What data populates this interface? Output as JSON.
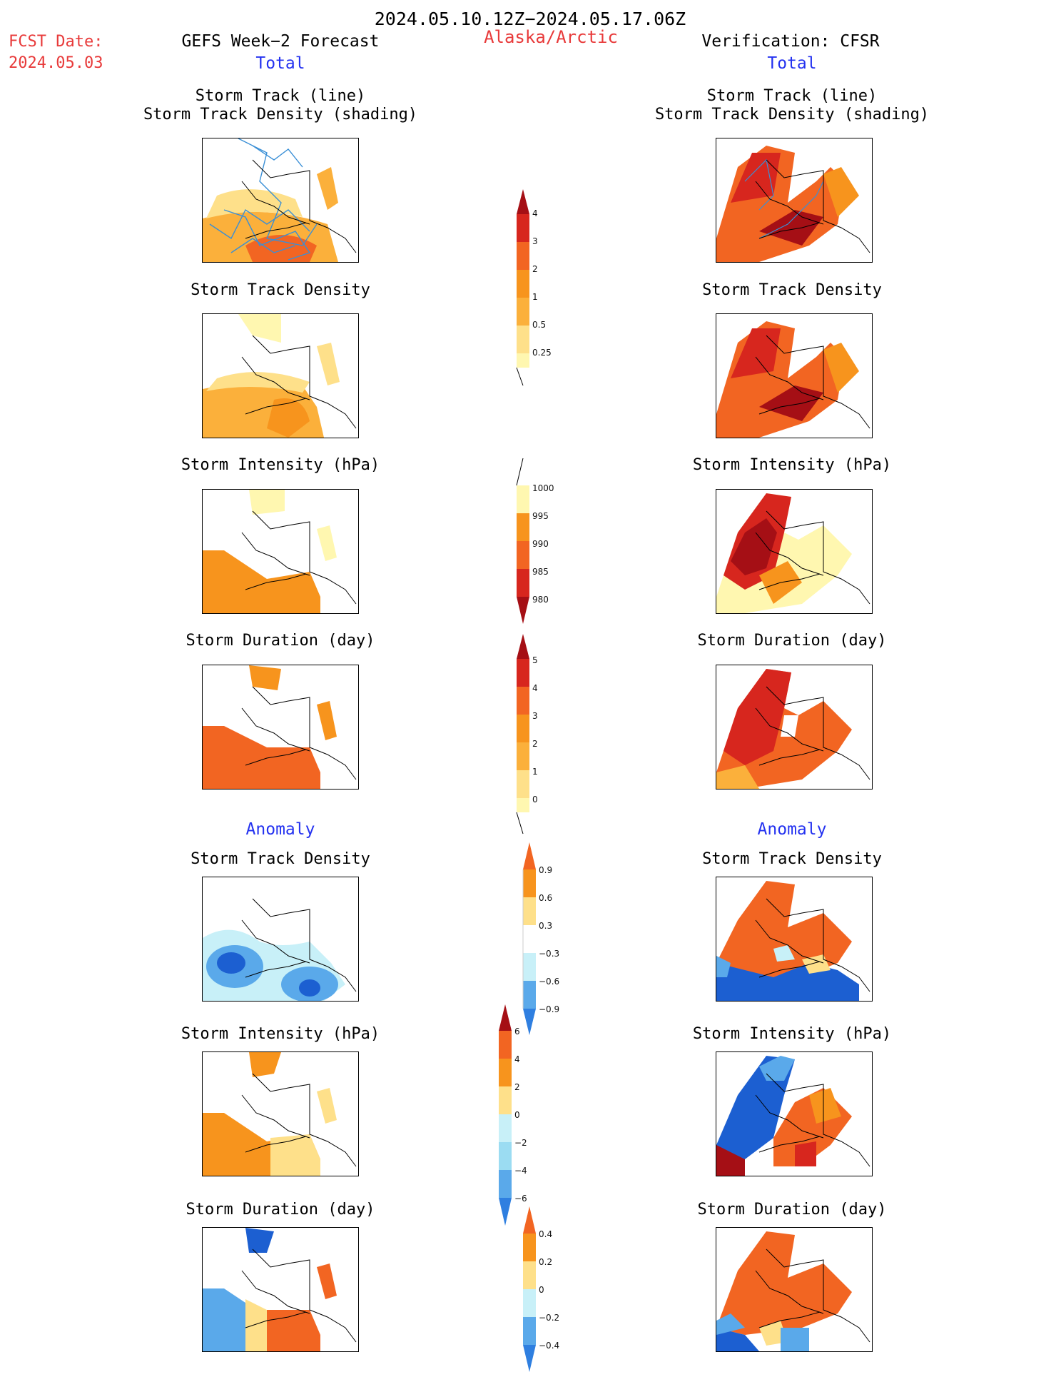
{
  "header": {
    "date_range": "2024.05.10.12Z−2024.05.17.06Z",
    "fcst_label": "FCST Date:",
    "fcst_date": "2024.05.03",
    "left_title": "GEFS Week−2 Forecast",
    "region": "Alaska/Arctic",
    "right_title": "Verification: CFSR"
  },
  "sections": {
    "total": "Total",
    "anomaly": "Anomaly"
  },
  "panel_titles": {
    "track_line": "Storm Track (line)",
    "track_shading": "Storm Track Density (shading)",
    "density": "Storm Track Density",
    "intensity": "Storm Intensity (hPa)",
    "duration": "Storm Duration (day)"
  },
  "colorbars": {
    "density_total": [
      "0.25",
      "0.5",
      "1",
      "2",
      "3",
      "4"
    ],
    "intensity_total": [
      "1000",
      "995",
      "990",
      "985",
      "980"
    ],
    "duration_total": [
      "0",
      "1",
      "2",
      "3",
      "4",
      "5"
    ],
    "density_anom": [
      "0.9",
      "0.6",
      "0.3",
      "−0.3",
      "−0.6",
      "−0.9"
    ],
    "intensity_anom": [
      "6",
      "4",
      "2",
      "0",
      "−2",
      "−4",
      "−6"
    ],
    "duration_anom": [
      "0.4",
      "0.2",
      "0",
      "−0.2",
      "−0.4"
    ]
  },
  "colors": {
    "warm": [
      "#fff7b0",
      "#fee08a",
      "#fbb03b",
      "#f7941d",
      "#f26522",
      "#d7261e",
      "#a50f15"
    ],
    "cool": [
      "#c8f0f8",
      "#9bdcf2",
      "#5aa9ea",
      "#2f7fe0",
      "#1c5fd1"
    ],
    "track_line": "#3a8fd6",
    "text_red": "#e83a3a",
    "text_blue": "#2432f0"
  }
}
